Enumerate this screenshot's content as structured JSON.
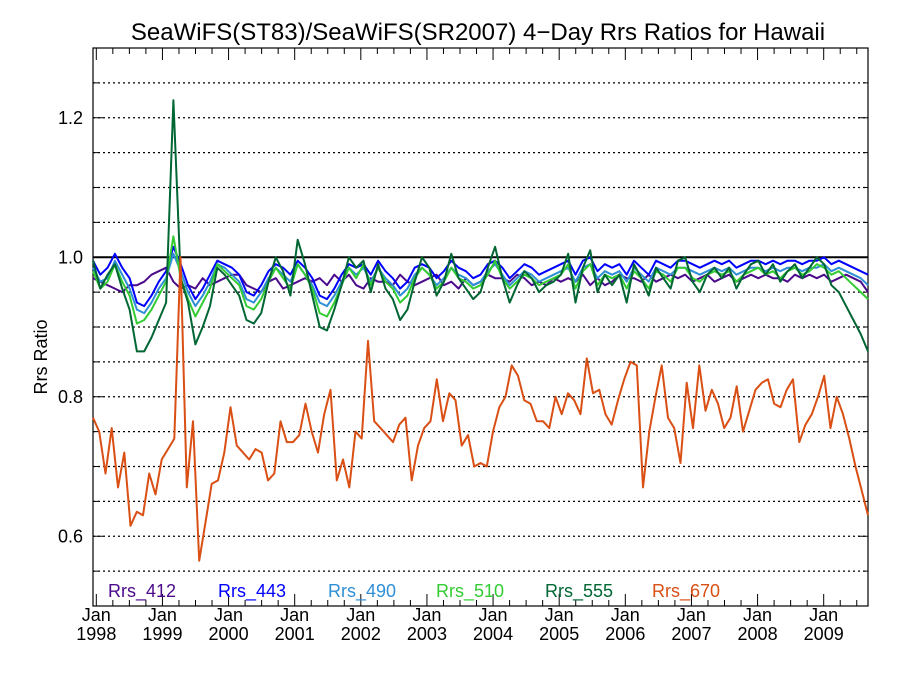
{
  "chart_data": {
    "type": "line",
    "title": "SeaWiFS(ST83)/SeaWiFS(SR2007) 4−Day Rrs Ratios for Hawaii",
    "ylabel": "Rrs Ratio",
    "xlabel": "",
    "xlim": [
      1997.95,
      2009.67
    ],
    "ylim": [
      0.5,
      1.3
    ],
    "yticks": [
      0.6,
      0.8,
      1.0,
      1.2
    ],
    "ytick_labels": [
      "0.6",
      "0.8",
      "1.0",
      "1.2"
    ],
    "xticks": [
      {
        "x": 1998,
        "month": "Jan",
        "year": "1998"
      },
      {
        "x": 1999,
        "month": "Jan",
        "year": "1999"
      },
      {
        "x": 2000,
        "month": "Jan",
        "year": "2000"
      },
      {
        "x": 2001,
        "month": "Jan",
        "year": "2001"
      },
      {
        "x": 2002,
        "month": "Jan",
        "year": "2002"
      },
      {
        "x": 2003,
        "month": "Jan",
        "year": "2003"
      },
      {
        "x": 2004,
        "month": "Jan",
        "year": "2004"
      },
      {
        "x": 2005,
        "month": "Jan",
        "year": "2005"
      },
      {
        "x": 2006,
        "month": "Jan",
        "year": "2006"
      },
      {
        "x": 2007,
        "month": "Jan",
        "year": "2007"
      },
      {
        "x": 2008,
        "month": "Jan",
        "year": "2008"
      },
      {
        "x": 2009,
        "month": "Jan",
        "year": "2009"
      }
    ],
    "reference_line": 1.0,
    "grid": "dotted horizontal every 0.05",
    "legend_position": "bottom, inside plot, horizontal",
    "series": [
      {
        "name": "Rrs_412",
        "color": "#4b0a8c",
        "x_start": 1997.95,
        "x_end": 2009.67,
        "values": [
          0.97,
          0.965,
          0.96,
          0.955,
          0.95,
          0.96,
          0.96,
          0.965,
          0.975,
          0.98,
          0.985,
          0.965,
          0.955,
          0.96,
          0.955,
          0.97,
          0.96,
          0.965,
          0.97,
          0.975,
          0.975,
          0.96,
          0.955,
          0.95,
          0.965,
          0.97,
          0.955,
          0.96,
          0.965,
          0.97,
          0.965,
          0.97,
          0.96,
          0.975,
          0.965,
          0.975,
          0.96,
          0.955,
          0.97,
          0.965,
          0.965,
          0.96,
          0.975,
          0.965,
          0.96,
          0.965,
          0.97,
          0.975,
          0.96,
          0.965,
          0.955,
          0.97,
          0.96,
          0.965,
          0.975,
          0.97,
          0.97,
          0.965,
          0.975,
          0.97,
          0.96,
          0.965,
          0.96,
          0.97,
          0.965,
          0.97,
          0.965,
          0.975,
          0.96,
          0.97,
          0.96,
          0.965,
          0.975,
          0.97,
          0.97,
          0.965,
          0.975,
          0.965,
          0.97,
          0.975,
          0.97,
          0.975,
          0.965,
          0.97,
          0.975,
          0.965,
          0.97,
          0.975,
          0.965,
          0.97,
          0.975,
          0.97,
          0.975,
          0.97,
          0.97,
          0.965,
          0.975,
          0.97,
          0.975,
          0.97,
          0.975,
          0.965,
          0.97,
          0.975,
          0.97,
          0.965,
          0.95
        ]
      },
      {
        "name": "Rrs_443",
        "color": "#0000ff",
        "x_start": 1997.95,
        "x_end": 2009.67,
        "values": [
          0.995,
          0.975,
          0.985,
          1.005,
          0.985,
          0.97,
          0.935,
          0.93,
          0.945,
          0.965,
          0.98,
          1.015,
          0.99,
          0.96,
          0.94,
          0.955,
          0.975,
          0.995,
          0.99,
          0.985,
          0.975,
          0.95,
          0.945,
          0.96,
          0.98,
          0.99,
          0.985,
          0.975,
          0.995,
          0.985,
          0.97,
          0.945,
          0.94,
          0.955,
          0.975,
          0.99,
          0.985,
          0.99,
          0.975,
          0.995,
          0.98,
          0.97,
          0.955,
          0.965,
          0.985,
          0.99,
          0.985,
          0.97,
          0.98,
          0.995,
          0.985,
          0.98,
          0.97,
          0.975,
          0.99,
          0.995,
          0.985,
          0.97,
          0.98,
          0.99,
          0.985,
          0.975,
          0.98,
          0.985,
          0.99,
          0.995,
          0.975,
          0.995,
          1.0,
          0.98,
          0.99,
          0.985,
          0.99,
          0.975,
          0.995,
          0.985,
          0.975,
          0.995,
          0.99,
          0.985,
          0.995,
          0.995,
          0.99,
          0.985,
          0.99,
          0.995,
          0.99,
          0.995,
          0.985,
          0.99,
          0.995,
          0.995,
          0.99,
          0.995,
          0.99,
          0.995,
          0.995,
          0.99,
          0.995,
          0.995,
          1.0,
          0.99,
          0.995,
          0.99,
          0.985,
          0.98,
          0.975
        ]
      },
      {
        "name": "Rrs_490",
        "color": "#2f8fd6",
        "x_start": 1997.95,
        "x_end": 2009.67,
        "values": [
          0.985,
          0.965,
          0.97,
          0.995,
          0.975,
          0.955,
          0.925,
          0.92,
          0.935,
          0.955,
          0.97,
          1.005,
          0.98,
          0.95,
          0.93,
          0.945,
          0.965,
          0.99,
          0.985,
          0.975,
          0.965,
          0.94,
          0.935,
          0.95,
          0.97,
          0.985,
          0.975,
          0.965,
          0.99,
          0.975,
          0.96,
          0.935,
          0.93,
          0.945,
          0.965,
          0.985,
          0.975,
          0.985,
          0.965,
          0.985,
          0.97,
          0.96,
          0.945,
          0.955,
          0.975,
          0.985,
          0.975,
          0.96,
          0.97,
          0.985,
          0.975,
          0.97,
          0.96,
          0.965,
          0.98,
          0.99,
          0.975,
          0.96,
          0.97,
          0.98,
          0.975,
          0.965,
          0.97,
          0.975,
          0.98,
          0.985,
          0.965,
          0.985,
          0.99,
          0.97,
          0.98,
          0.975,
          0.98,
          0.965,
          0.985,
          0.975,
          0.965,
          0.985,
          0.98,
          0.975,
          0.985,
          0.985,
          0.98,
          0.975,
          0.98,
          0.985,
          0.98,
          0.985,
          0.975,
          0.98,
          0.985,
          0.985,
          0.98,
          0.985,
          0.98,
          0.985,
          0.985,
          0.98,
          0.985,
          0.985,
          0.99,
          0.98,
          0.985,
          0.98,
          0.975,
          0.97,
          0.96
        ]
      },
      {
        "name": "Rrs_510",
        "color": "#33cc33",
        "x_start": 1997.95,
        "x_end": 2009.67,
        "values": [
          0.98,
          0.955,
          0.965,
          0.99,
          0.965,
          0.945,
          0.905,
          0.91,
          0.925,
          0.945,
          0.965,
          1.03,
          0.97,
          0.94,
          0.915,
          0.935,
          0.955,
          0.99,
          0.98,
          0.97,
          0.96,
          0.93,
          0.925,
          0.94,
          0.965,
          0.985,
          0.97,
          0.955,
          0.99,
          0.975,
          0.955,
          0.92,
          0.915,
          0.935,
          0.96,
          0.985,
          0.97,
          0.99,
          0.96,
          0.985,
          0.965,
          0.955,
          0.935,
          0.945,
          0.97,
          0.985,
          0.975,
          0.955,
          0.965,
          0.985,
          0.97,
          0.965,
          0.955,
          0.96,
          0.975,
          0.995,
          0.97,
          0.955,
          0.965,
          0.975,
          0.97,
          0.96,
          0.965,
          0.97,
          0.975,
          0.99,
          0.955,
          0.98,
          0.99,
          0.96,
          0.975,
          0.97,
          0.975,
          0.955,
          0.98,
          0.97,
          0.955,
          0.98,
          0.975,
          0.965,
          0.985,
          0.985,
          0.97,
          0.965,
          0.975,
          0.98,
          0.975,
          0.98,
          0.965,
          0.975,
          0.98,
          0.985,
          0.975,
          0.98,
          0.97,
          0.98,
          0.985,
          0.975,
          0.98,
          0.99,
          0.985,
          0.975,
          0.98,
          0.97,
          0.96,
          0.95,
          0.94
        ]
      },
      {
        "name": "Rrs_555",
        "color": "#006633",
        "x_start": 1997.95,
        "x_end": 2009.67,
        "values": [
          0.995,
          0.955,
          0.975,
          0.99,
          0.955,
          0.925,
          0.865,
          0.865,
          0.885,
          0.91,
          0.935,
          1.225,
          0.97,
          0.935,
          0.875,
          0.9,
          0.93,
          0.985,
          0.975,
          0.96,
          0.945,
          0.91,
          0.905,
          0.92,
          0.965,
          1.0,
          0.98,
          0.945,
          1.025,
          0.99,
          0.945,
          0.9,
          0.895,
          0.925,
          0.96,
          1.0,
          0.985,
          0.995,
          0.95,
          0.99,
          0.955,
          0.94,
          0.91,
          0.925,
          0.965,
          1.0,
          0.985,
          0.945,
          0.965,
          1.005,
          0.97,
          0.955,
          0.94,
          0.95,
          0.985,
          1.015,
          0.97,
          0.935,
          0.96,
          0.98,
          0.97,
          0.95,
          0.96,
          0.965,
          0.975,
          1.005,
          0.935,
          0.985,
          1.01,
          0.95,
          0.975,
          0.96,
          0.975,
          0.935,
          0.99,
          0.97,
          0.945,
          0.985,
          0.97,
          0.955,
          0.995,
          1.0,
          0.965,
          0.95,
          0.975,
          0.985,
          0.97,
          0.985,
          0.955,
          0.975,
          0.99,
          0.995,
          0.975,
          0.99,
          0.965,
          0.98,
          0.99,
          0.97,
          0.985,
          1.0,
          0.99,
          0.96,
          0.95,
          0.93,
          0.91,
          0.89,
          0.865
        ]
      },
      {
        "name": "Rrs_670",
        "color": "#d94f14",
        "x_start": 1997.95,
        "x_end": 2009.67,
        "values": [
          0.77,
          0.75,
          0.69,
          0.755,
          0.67,
          0.72,
          0.615,
          0.635,
          0.63,
          0.69,
          0.66,
          0.71,
          0.725,
          0.74,
          1.0,
          0.67,
          0.765,
          0.565,
          0.62,
          0.675,
          0.68,
          0.72,
          0.785,
          0.73,
          0.72,
          0.71,
          0.725,
          0.72,
          0.68,
          0.69,
          0.765,
          0.735,
          0.735,
          0.745,
          0.79,
          0.75,
          0.72,
          0.775,
          0.81,
          0.68,
          0.71,
          0.67,
          0.75,
          0.74,
          0.88,
          0.765,
          0.755,
          0.745,
          0.735,
          0.76,
          0.77,
          0.68,
          0.73,
          0.755,
          0.765,
          0.825,
          0.765,
          0.805,
          0.795,
          0.73,
          0.745,
          0.7,
          0.705,
          0.7,
          0.75,
          0.785,
          0.8,
          0.845,
          0.83,
          0.795,
          0.79,
          0.765,
          0.765,
          0.755,
          0.8,
          0.775,
          0.805,
          0.795,
          0.775,
          0.855,
          0.805,
          0.81,
          0.775,
          0.76,
          0.795,
          0.825,
          0.85,
          0.845,
          0.67,
          0.75,
          0.8,
          0.845,
          0.77,
          0.755,
          0.705,
          0.82,
          0.755,
          0.845,
          0.78,
          0.81,
          0.79,
          0.755,
          0.77,
          0.815,
          0.75,
          0.78,
          0.81,
          0.82,
          0.825,
          0.79,
          0.785,
          0.81,
          0.825,
          0.735,
          0.76,
          0.775,
          0.8,
          0.83,
          0.755,
          0.8,
          0.775,
          0.74,
          0.7,
          0.665,
          0.63
        ]
      }
    ]
  }
}
